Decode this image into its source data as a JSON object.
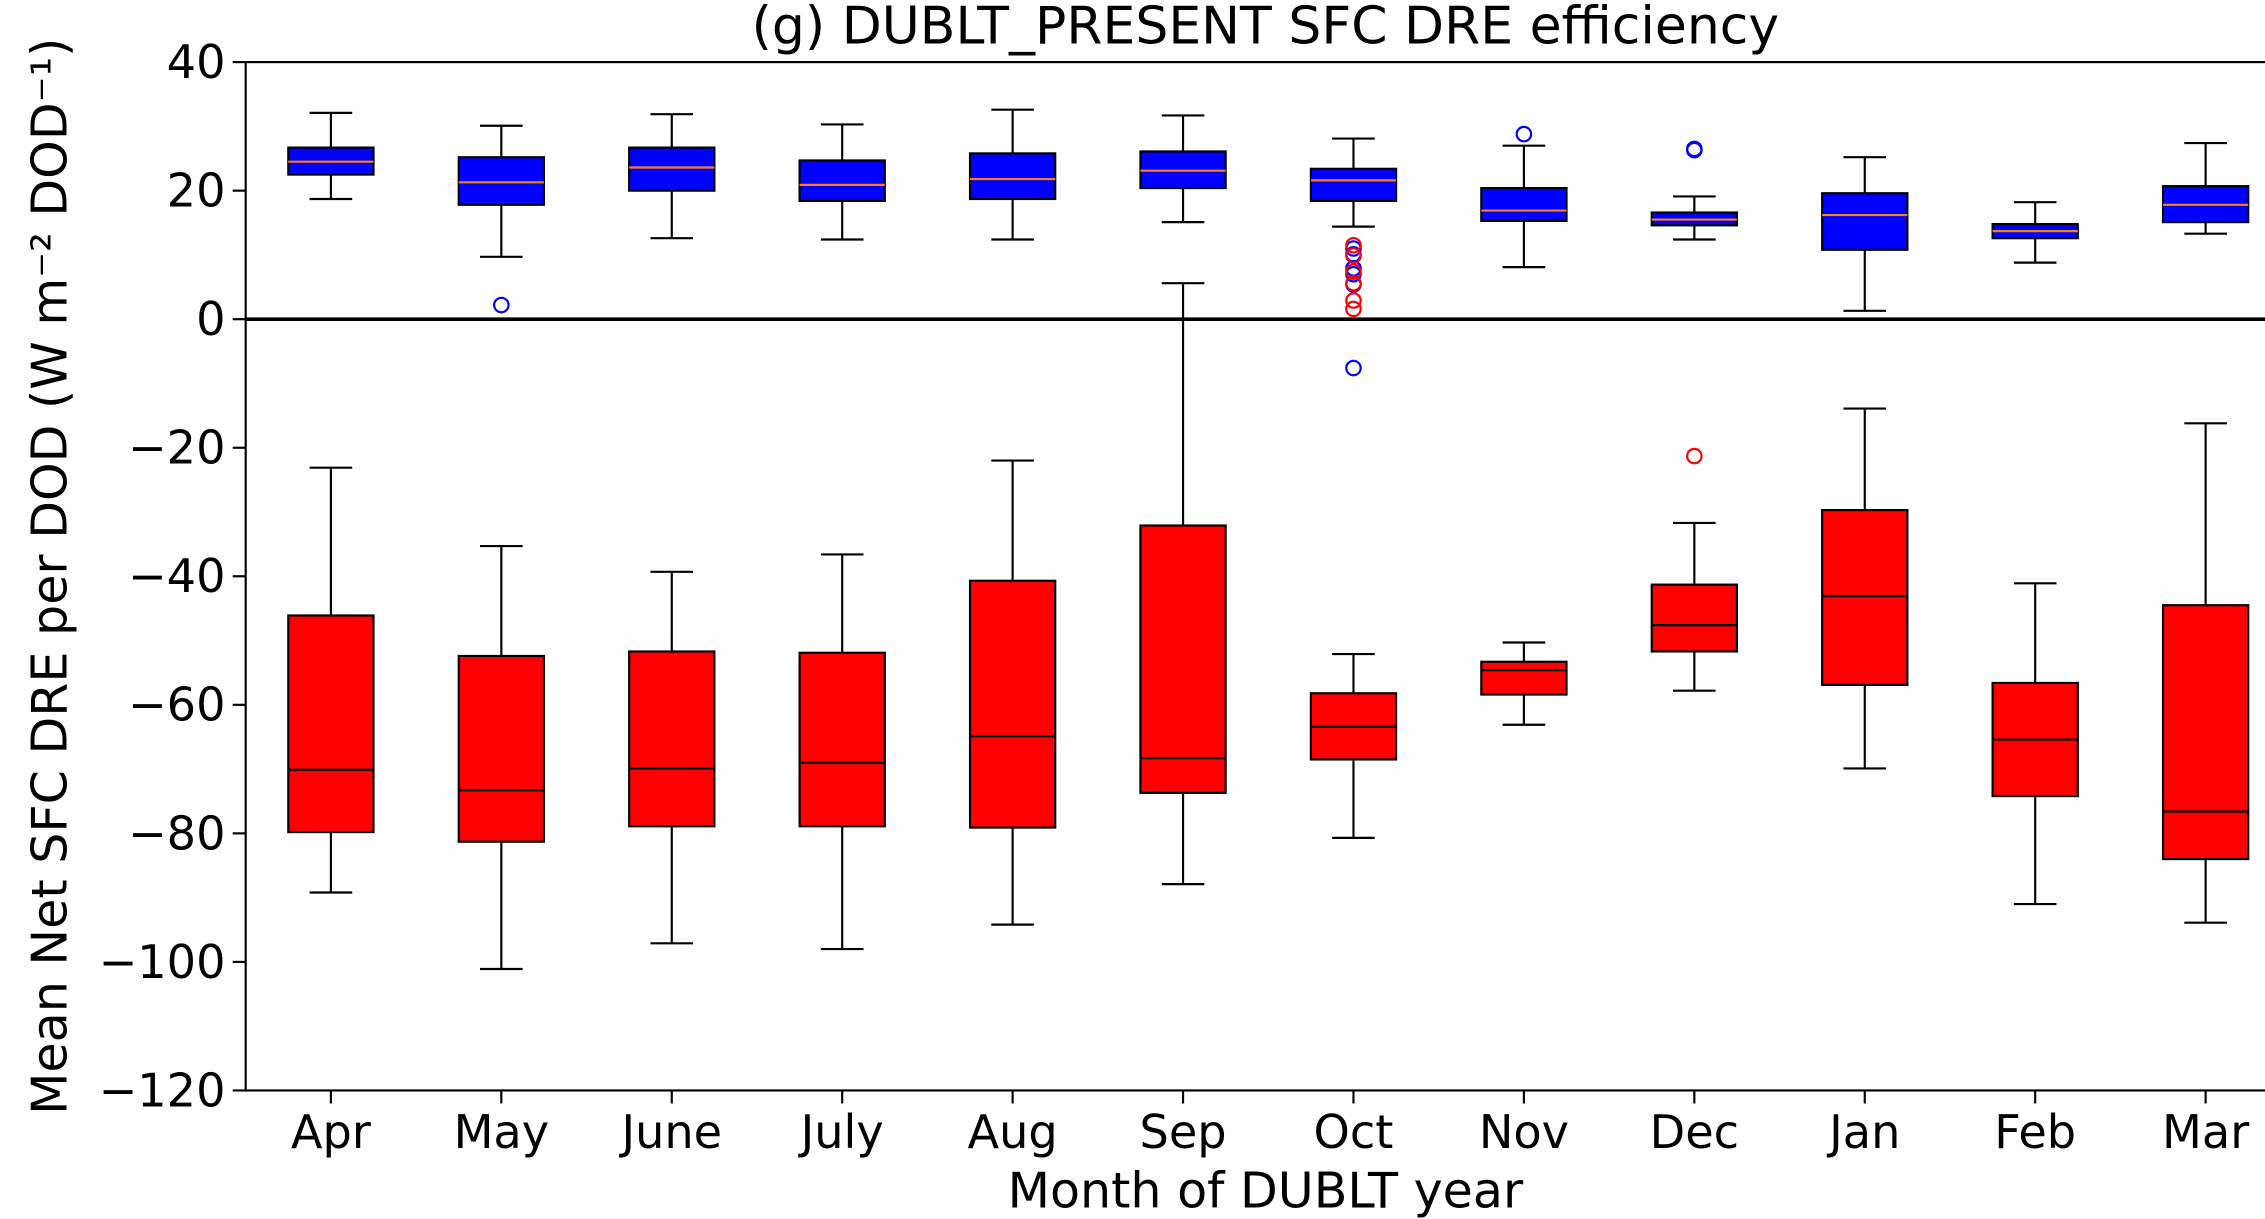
{
  "chart_data": {
    "type": "box",
    "title": "(g) DUBLT_PRESENT SFC DRE efficiency",
    "xlabel": "Month of DUBLT year",
    "ylabel": "Mean Net SFC DRE per DOD (W m⁻² DOD⁻¹)",
    "categories": [
      "Apr",
      "May",
      "June",
      "July",
      "Aug",
      "Sep",
      "Oct",
      "Nov",
      "Dec",
      "Jan",
      "Feb",
      "Mar"
    ],
    "ylim": [
      -120,
      40
    ],
    "yticks": [
      {
        "value": -120,
        "label": "−120"
      },
      {
        "value": -100,
        "label": "−100"
      },
      {
        "value": -80,
        "label": "−80"
      },
      {
        "value": -60,
        "label": "−60"
      },
      {
        "value": -40,
        "label": "−40"
      },
      {
        "value": -20,
        "label": "−20"
      },
      0,
      20,
      40
    ],
    "hline": 0,
    "series": [
      {
        "color": "#0000ff",
        "median_color": "#ff7f0e",
        "flier_color": "#0000ff",
        "whislo": [
          18.7,
          9.7,
          12.6,
          12.4,
          12.4,
          15.1,
          14.4,
          8.1,
          12.4,
          1.3,
          8.8,
          13.3
        ],
        "q1": [
          22.5,
          17.8,
          20.0,
          18.4,
          18.7,
          20.4,
          18.4,
          15.3,
          14.6,
          10.8,
          12.6,
          15.1
        ],
        "median": [
          24.5,
          21.3,
          23.6,
          20.9,
          21.8,
          23.1,
          21.6,
          16.9,
          15.5,
          16.2,
          13.7,
          17.8
        ],
        "q3": [
          26.7,
          25.2,
          26.7,
          24.7,
          25.8,
          26.1,
          23.4,
          20.4,
          16.6,
          19.6,
          14.8,
          20.7
        ],
        "whishi": [
          32.1,
          30.1,
          31.9,
          30.3,
          32.6,
          31.7,
          28.1,
          27.0,
          19.1,
          25.2,
          18.2,
          27.4
        ],
        "fliers": [
          [],
          [
            2.2
          ],
          [],
          [],
          [],
          [],
          [
            11.0,
            10.1,
            7.9,
            7.0,
            5.4,
            -7.6
          ],
          [
            28.8
          ],
          [
            26.5,
            26.3
          ],
          [],
          [],
          []
        ]
      },
      {
        "color": "#ff0000",
        "median_color": "#000000",
        "flier_color": "#ff0000",
        "whislo": [
          -89.2,
          -101.1,
          -97.1,
          -98.0,
          -94.2,
          -87.9,
          -80.7,
          -63.1,
          -57.8,
          -69.9,
          -91.0,
          -93.9
        ],
        "q1": [
          -79.8,
          -81.3,
          -78.9,
          -78.9,
          -79.1,
          -73.7,
          -68.5,
          -58.4,
          -51.7,
          -56.9,
          -74.2,
          -84.0
        ],
        "median": [
          -70.1,
          -73.3,
          -69.9,
          -69.0,
          -64.9,
          -68.3,
          -63.4,
          -54.6,
          -47.6,
          -43.1,
          -65.4,
          -76.6
        ],
        "q3": [
          -46.1,
          -52.4,
          -51.7,
          -51.9,
          -40.7,
          -32.1,
          -58.2,
          -53.3,
          -41.3,
          -29.7,
          -56.6,
          -44.5
        ],
        "whishi": [
          -23.1,
          -35.3,
          -39.3,
          -36.6,
          -22.0,
          5.6,
          -52.1,
          -50.3,
          -31.7,
          -13.9,
          -41.1,
          -16.2
        ],
        "fliers": [
          [],
          [],
          [],
          [],
          [],
          [],
          [
            11.5,
            9.9,
            7.4,
            5.6,
            2.9,
            1.6
          ],
          [],
          [
            -21.3
          ],
          [],
          [],
          []
        ]
      }
    ]
  }
}
